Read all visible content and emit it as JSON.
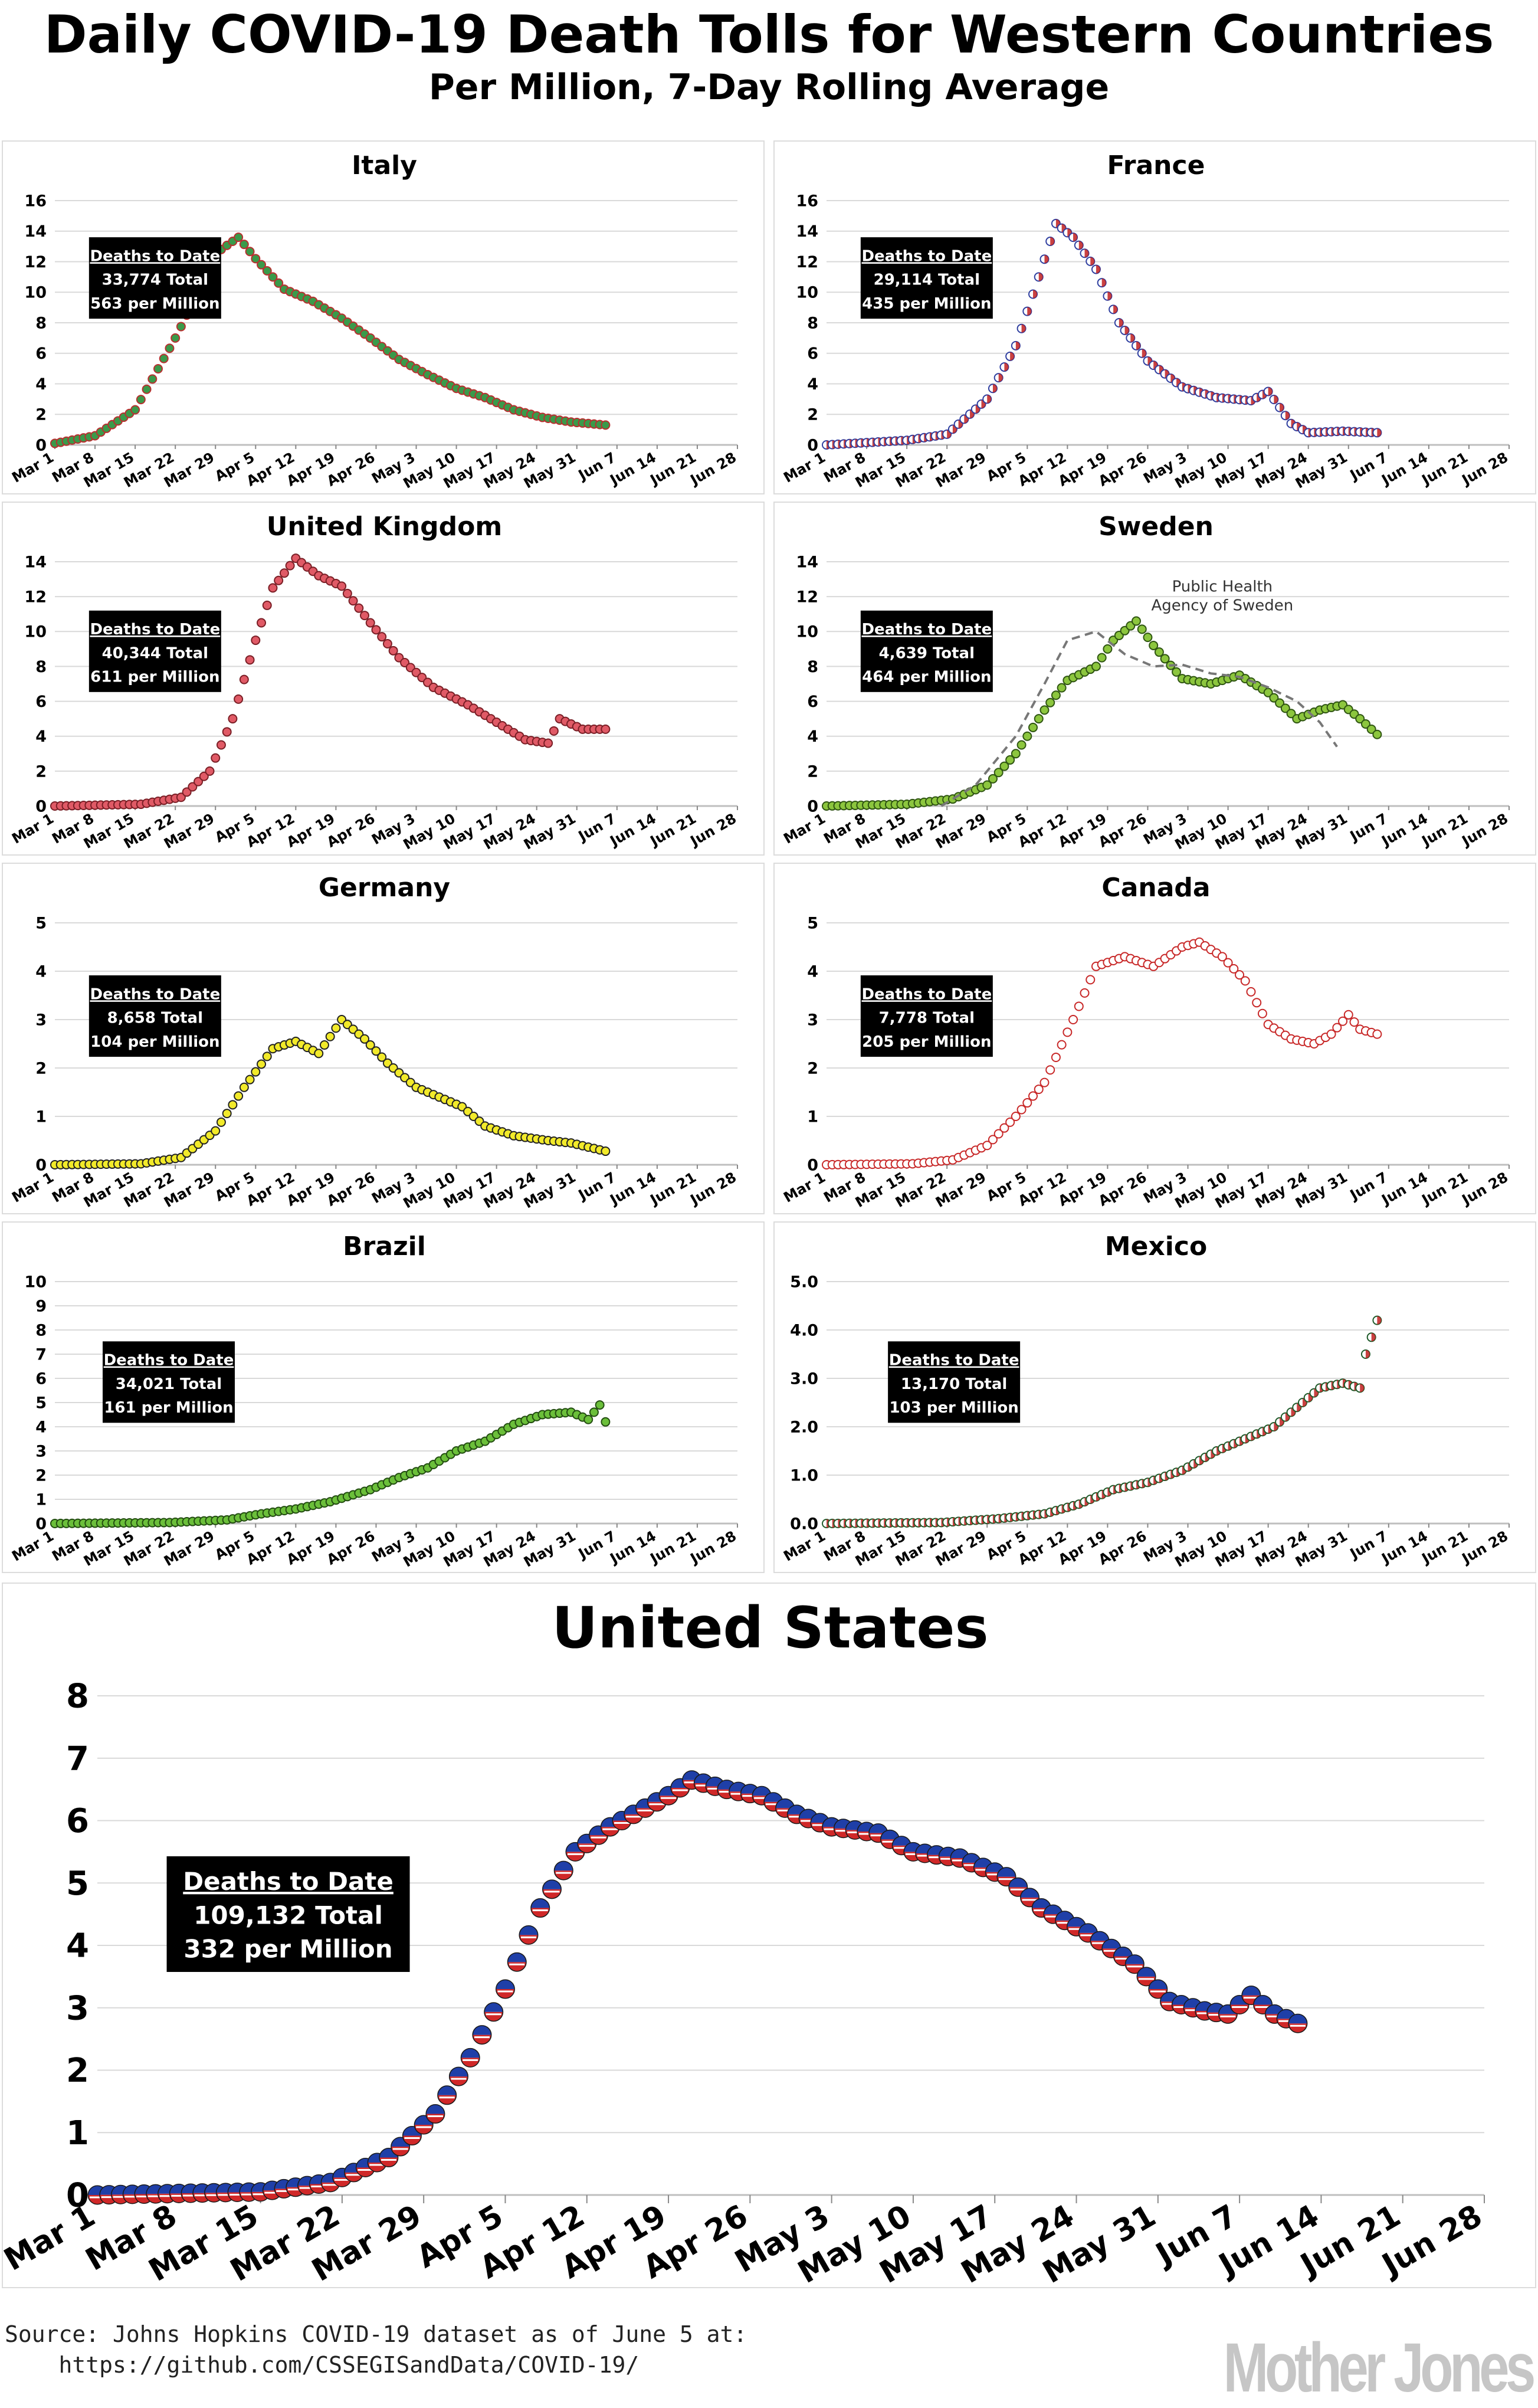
{
  "title": "Daily COVID-19 Death Tolls for Western Countries",
  "subtitle": "Per Million, 7-Day Rolling Average",
  "source": "Source: Johns Hopkins COVID-19 dataset as of June 5 at:",
  "source_url": "https://github.com/CSSEGISandData/COVID-19/",
  "logo": "Mother Jones",
  "x_categories": [
    "Mar 1",
    "Mar 8",
    "Mar 15",
    "Mar 22",
    "Mar 29",
    "Apr 5",
    "Apr 12",
    "Apr 19",
    "Apr 26",
    "May 3",
    "May 10",
    "May 17",
    "May 24",
    "May 31",
    "Jun 7",
    "Jun 14",
    "Jun 21",
    "Jun 28"
  ],
  "box_header": "Deaths to Date",
  "chart_data": [
    {
      "type": "scatter",
      "title": "Italy",
      "color": "#3a9a4a",
      "edge": "#b83030",
      "ylim": [
        0,
        16
      ],
      "yticks": [
        0,
        2,
        4,
        6,
        8,
        10,
        12,
        14,
        16
      ],
      "box": {
        "total": "33,774 Total",
        "per_million": "563 per Million"
      },
      "x_range": [
        "Mar 1",
        "Jun 5"
      ],
      "series": [
        {
          "knots": [
            [
              0,
              0.1
            ],
            [
              7,
              0.6
            ],
            [
              14,
              2.3
            ],
            [
              21,
              7
            ],
            [
              25,
              10
            ],
            [
              29,
              12.8
            ],
            [
              32,
              13.6
            ],
            [
              35,
              12.2
            ],
            [
              40,
              10.2
            ],
            [
              45,
              9.4
            ],
            [
              50,
              8.3
            ],
            [
              55,
              7
            ],
            [
              60,
              5.6
            ],
            [
              65,
              4.6
            ],
            [
              70,
              3.7
            ],
            [
              75,
              3.1
            ],
            [
              80,
              2.3
            ],
            [
              85,
              1.8
            ],
            [
              90,
              1.5
            ],
            [
              96,
              1.3
            ]
          ]
        }
      ]
    },
    {
      "type": "scatter",
      "title": "France",
      "color": "#ffffff",
      "edge": "#2f3fa0",
      "accent": "#c02020",
      "ylim": [
        0,
        16
      ],
      "yticks": [
        0,
        2,
        4,
        6,
        8,
        10,
        12,
        14,
        16
      ],
      "box": {
        "total": "29,114 Total",
        "per_million": "435 per Million"
      },
      "x_range": [
        "Mar 1",
        "Jun 5"
      ],
      "series": [
        {
          "knots": [
            [
              0,
              0
            ],
            [
              14,
              0.3
            ],
            [
              21,
              0.7
            ],
            [
              28,
              3
            ],
            [
              33,
              6.5
            ],
            [
              37,
              11
            ],
            [
              40,
              14.5
            ],
            [
              43,
              13.6
            ],
            [
              47,
              11.5
            ],
            [
              51,
              8
            ],
            [
              56,
              5.5
            ],
            [
              62,
              3.8
            ],
            [
              68,
              3.1
            ],
            [
              74,
              2.9
            ],
            [
              77,
              3.5
            ],
            [
              81,
              1.4
            ],
            [
              84,
              0.8
            ],
            [
              90,
              0.9
            ],
            [
              96,
              0.8
            ]
          ]
        }
      ]
    },
    {
      "type": "scatter",
      "title": "United Kingdom",
      "color": "#e05a66",
      "edge": "#7a1f26",
      "ylim": [
        0,
        14
      ],
      "yticks": [
        0,
        2,
        4,
        6,
        8,
        10,
        12,
        14
      ],
      "box": {
        "total": "40,344 Total",
        "per_million": "611 per Million"
      },
      "x_range": [
        "Mar 1",
        "Jun 5"
      ],
      "series": [
        {
          "knots": [
            [
              0,
              0
            ],
            [
              15,
              0.1
            ],
            [
              22,
              0.5
            ],
            [
              27,
              2
            ],
            [
              31,
              5
            ],
            [
              35,
              9.5
            ],
            [
              38,
              12.5
            ],
            [
              42,
              14.2
            ],
            [
              46,
              13.2
            ],
            [
              50,
              12.6
            ],
            [
              55,
              10.5
            ],
            [
              60,
              8.5
            ],
            [
              66,
              6.8
            ],
            [
              72,
              5.8
            ],
            [
              78,
              4.6
            ],
            [
              82,
              3.8
            ],
            [
              86,
              3.6
            ],
            [
              88,
              5
            ],
            [
              92,
              4.4
            ],
            [
              96,
              4.4
            ]
          ]
        }
      ]
    },
    {
      "type": "scatter",
      "title": "Sweden",
      "color": "#8cc63e",
      "edge": "#2f5512",
      "ylim": [
        0,
        14
      ],
      "yticks": [
        0,
        2,
        4,
        6,
        8,
        10,
        12,
        14
      ],
      "box": {
        "total": "4,639 Total",
        "per_million": "464 per Million"
      },
      "annotation": "Public Health Agency of Sweden",
      "x_range": [
        "Mar 1",
        "Jun 5"
      ],
      "series": [
        {
          "name": "Johns Hopkins",
          "knots": [
            [
              0,
              0
            ],
            [
              14,
              0.1
            ],
            [
              22,
              0.4
            ],
            [
              28,
              1.2
            ],
            [
              33,
              3
            ],
            [
              38,
              5.5
            ],
            [
              42,
              7.2
            ],
            [
              47,
              8
            ],
            [
              50,
              9.5
            ],
            [
              54,
              10.6
            ],
            [
              57,
              9.2
            ],
            [
              62,
              7.3
            ],
            [
              67,
              7
            ],
            [
              72,
              7.5
            ],
            [
              77,
              6.5
            ],
            [
              82,
              5
            ],
            [
              86,
              5.5
            ],
            [
              90,
              5.8
            ],
            [
              93,
              5
            ],
            [
              96,
              4.1
            ]
          ]
        },
        {
          "name": "Public Health Agency of Sweden",
          "line": true,
          "knots": [
            [
              20,
              0
            ],
            [
              26,
              1.2
            ],
            [
              33,
              4
            ],
            [
              38,
              7
            ],
            [
              42,
              9.5
            ],
            [
              47,
              10
            ],
            [
              52,
              8.7
            ],
            [
              57,
              8
            ],
            [
              62,
              8.1
            ],
            [
              67,
              7.6
            ],
            [
              72,
              7.4
            ],
            [
              77,
              6.8
            ],
            [
              82,
              6
            ],
            [
              86,
              4.8
            ],
            [
              89,
              3.4
            ]
          ]
        }
      ]
    },
    {
      "type": "scatter",
      "title": "Germany",
      "color": "#f2ea2a",
      "edge": "#222222",
      "ylim": [
        0,
        5
      ],
      "yticks": [
        0,
        1,
        2,
        3,
        4,
        5
      ],
      "box": {
        "total": "8,658 Total",
        "per_million": "104 per Million"
      },
      "x_range": [
        "Mar 1",
        "Jun 5"
      ],
      "series": [
        {
          "knots": [
            [
              0,
              0
            ],
            [
              15,
              0.02
            ],
            [
              22,
              0.15
            ],
            [
              28,
              0.7
            ],
            [
              33,
              1.6
            ],
            [
              38,
              2.4
            ],
            [
              42,
              2.55
            ],
            [
              46,
              2.3
            ],
            [
              50,
              3
            ],
            [
              54,
              2.6
            ],
            [
              58,
              2.1
            ],
            [
              63,
              1.6
            ],
            [
              67,
              1.4
            ],
            [
              71,
              1.2
            ],
            [
              75,
              0.8
            ],
            [
              80,
              0.6
            ],
            [
              86,
              0.5
            ],
            [
              90,
              0.45
            ],
            [
              96,
              0.28
            ]
          ]
        }
      ]
    },
    {
      "type": "scatter",
      "title": "Canada",
      "color": "#ffffff",
      "edge": "#c82828",
      "ylim": [
        0,
        5
      ],
      "yticks": [
        0,
        1,
        2,
        3,
        4,
        5
      ],
      "box": {
        "total": "7,778 Total",
        "per_million": "205 per Million"
      },
      "x_range": [
        "Mar 1",
        "Jun 5"
      ],
      "series": [
        {
          "knots": [
            [
              0,
              0
            ],
            [
              15,
              0.02
            ],
            [
              22,
              0.1
            ],
            [
              28,
              0.4
            ],
            [
              33,
              1
            ],
            [
              38,
              1.7
            ],
            [
              43,
              3
            ],
            [
              47,
              4.1
            ],
            [
              52,
              4.3
            ],
            [
              57,
              4.1
            ],
            [
              62,
              4.5
            ],
            [
              65,
              4.6
            ],
            [
              69,
              4.3
            ],
            [
              73,
              3.8
            ],
            [
              77,
              2.9
            ],
            [
              81,
              2.6
            ],
            [
              85,
              2.5
            ],
            [
              88,
              2.7
            ],
            [
              91,
              3.1
            ],
            [
              93,
              2.8
            ],
            [
              96,
              2.7
            ]
          ]
        }
      ]
    },
    {
      "type": "scatter",
      "title": "Brazil",
      "color": "#6bbf3a",
      "edge": "#234d11",
      "ylim": [
        0,
        10
      ],
      "yticks": [
        0,
        1,
        2,
        3,
        4,
        5,
        6,
        7,
        8,
        9,
        10
      ],
      "box": {
        "total": "34,021 Total",
        "per_million": "161 per Million"
      },
      "x_range": [
        "Mar 1",
        "Jun 5"
      ],
      "series": [
        {
          "knots": [
            [
              0,
              0
            ],
            [
              20,
              0.04
            ],
            [
              30,
              0.15
            ],
            [
              36,
              0.4
            ],
            [
              42,
              0.6
            ],
            [
              48,
              0.9
            ],
            [
              55,
              1.4
            ],
            [
              60,
              1.9
            ],
            [
              65,
              2.3
            ],
            [
              70,
              3
            ],
            [
              75,
              3.4
            ],
            [
              80,
              4.1
            ],
            [
              85,
              4.5
            ],
            [
              90,
              4.6
            ],
            [
              93,
              4.3
            ],
            [
              95,
              4.9
            ],
            [
              96,
              4.2
            ]
          ]
        }
      ]
    },
    {
      "type": "scatter",
      "title": "Mexico",
      "color": "#ffffff",
      "edge": "#1f5a2a",
      "accent": "#c02020",
      "ylim": [
        0,
        5
      ],
      "yticks": [
        "0.0",
        "1.0",
        "2.0",
        "3.0",
        "4.0",
        "5.0"
      ],
      "box": {
        "total": "13,170 Total",
        "per_million": "103 per Million"
      },
      "x_range": [
        "Mar 1",
        "Jun 5"
      ],
      "series": [
        {
          "knots": [
            [
              0,
              0
            ],
            [
              20,
              0.02
            ],
            [
              30,
              0.1
            ],
            [
              38,
              0.2
            ],
            [
              44,
              0.4
            ],
            [
              50,
              0.7
            ],
            [
              56,
              0.85
            ],
            [
              62,
              1.1
            ],
            [
              68,
              1.5
            ],
            [
              74,
              1.8
            ],
            [
              78,
              2
            ],
            [
              82,
              2.4
            ],
            [
              86,
              2.8
            ],
            [
              90,
              2.9
            ],
            [
              93,
              2.8
            ],
            [
              94,
              3.5
            ],
            [
              96,
              4.2
            ]
          ]
        }
      ]
    },
    {
      "type": "scatter",
      "title": "United States",
      "color": "#ffffff",
      "edge": "#1a1a1a",
      "ylim": [
        0,
        8
      ],
      "yticks": [
        0,
        1,
        2,
        3,
        4,
        5,
        6,
        7,
        8
      ],
      "box": {
        "total": "109,132 Total",
        "per_million": "332 per Million"
      },
      "x_range": [
        "Mar 1",
        "Jun 5"
      ],
      "series": [
        {
          "knots": [
            [
              0,
              0
            ],
            [
              14,
              0.05
            ],
            [
              20,
              0.2
            ],
            [
              25,
              0.6
            ],
            [
              29,
              1.3
            ],
            [
              32,
              2.2
            ],
            [
              35,
              3.3
            ],
            [
              38,
              4.6
            ],
            [
              41,
              5.5
            ],
            [
              44,
              5.9
            ],
            [
              47,
              6.2
            ],
            [
              49,
              6.4
            ],
            [
              51,
              6.65
            ],
            [
              54,
              6.5
            ],
            [
              57,
              6.4
            ],
            [
              60,
              6.1
            ],
            [
              63,
              5.9
            ],
            [
              67,
              5.8
            ],
            [
              70,
              5.5
            ],
            [
              74,
              5.4
            ],
            [
              78,
              5.1
            ],
            [
              81,
              4.6
            ],
            [
              85,
              4.2
            ],
            [
              89,
              3.7
            ],
            [
              92,
              3.1
            ],
            [
              95,
              2.95
            ],
            [
              97,
              2.9
            ],
            [
              99,
              3.2
            ],
            [
              101,
              2.9
            ],
            [
              103,
              2.75
            ]
          ]
        }
      ]
    }
  ]
}
